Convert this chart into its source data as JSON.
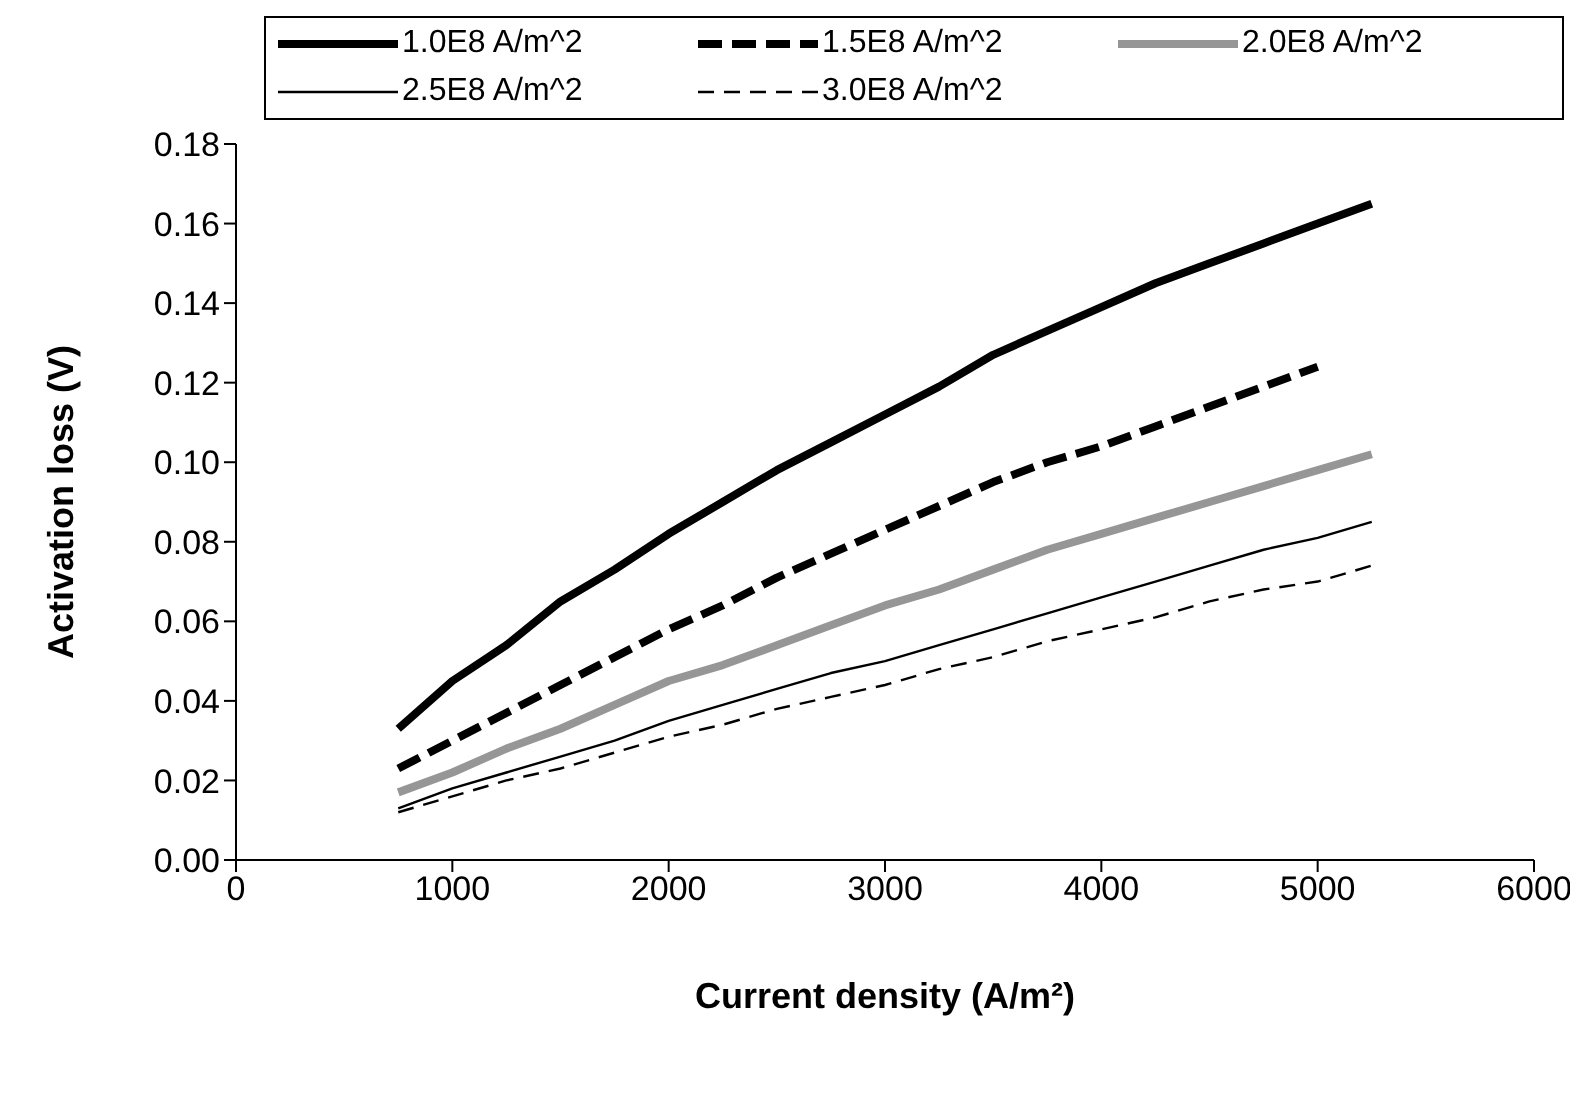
{
  "chart_data": {
    "type": "line",
    "xlabel": "Current density (A/m²)",
    "ylabel": "Activation loss (V)",
    "x": [
      750,
      1000,
      1250,
      1500,
      1750,
      2000,
      2250,
      2500,
      2750,
      3000,
      3250,
      3500,
      3750,
      4000,
      4250,
      4500,
      4750,
      5000,
      5250
    ],
    "series": [
      {
        "name": "1.0E8 A/m^2",
        "color": "#000000",
        "line_style": "solid",
        "values": [
          0.033,
          0.045,
          0.054,
          0.065,
          0.073,
          0.082,
          0.09,
          0.098,
          0.105,
          0.112,
          0.119,
          0.127,
          0.133,
          0.139,
          0.145,
          0.15,
          0.155,
          0.16,
          0.165
        ]
      },
      {
        "name": "1.5E8 A/m^2",
        "color": "#000000",
        "line_style": "dashed",
        "values": [
          0.023,
          0.03,
          0.037,
          0.044,
          0.051,
          0.058,
          0.064,
          0.071,
          0.077,
          0.083,
          0.089,
          0.095,
          0.1,
          0.104,
          0.109,
          0.114,
          0.119,
          0.124,
          null
        ]
      },
      {
        "name": "2.0E8 A/m^2",
        "color": "#969696",
        "line_style": "solid",
        "values": [
          0.017,
          0.022,
          0.028,
          0.033,
          0.039,
          0.045,
          0.049,
          0.054,
          0.059,
          0.064,
          0.068,
          0.073,
          0.078,
          0.082,
          0.086,
          0.09,
          0.094,
          0.098,
          0.102
        ]
      },
      {
        "name": "2.5E8 A/m^2",
        "color": "#000000",
        "line_style": "solid",
        "values": [
          0.013,
          0.018,
          0.022,
          0.026,
          0.03,
          0.035,
          0.039,
          0.043,
          0.047,
          0.05,
          0.054,
          0.058,
          0.062,
          0.066,
          0.07,
          0.074,
          0.078,
          0.081,
          0.085
        ]
      },
      {
        "name": "3.0E8 A/m^2",
        "color": "#000000",
        "line_style": "dashed",
        "values": [
          0.012,
          0.016,
          0.02,
          0.023,
          0.027,
          0.031,
          0.034,
          0.038,
          0.041,
          0.044,
          0.048,
          0.051,
          0.055,
          0.058,
          0.061,
          0.065,
          0.068,
          0.07,
          0.074
        ]
      }
    ],
    "xlim": [
      0,
      6000
    ],
    "xticks": [
      0,
      1000,
      2000,
      3000,
      4000,
      5000,
      6000
    ],
    "ylim": [
      0,
      0.18
    ],
    "yticks": [
      {
        "value": 0,
        "label": "0.00"
      },
      {
        "value": 0.02,
        "label": "0.02"
      },
      {
        "value": 0.04,
        "label": "0.04"
      },
      {
        "value": 0.06,
        "label": "0.06"
      },
      {
        "value": 0.08,
        "label": "0.08"
      },
      {
        "value": 0.1,
        "label": "0.10"
      },
      {
        "value": 0.12,
        "label": "0.12"
      },
      {
        "value": 0.14,
        "label": "0.14"
      },
      {
        "value": 0.16,
        "label": "0.16"
      },
      {
        "value": 0.18,
        "label": "0.18"
      }
    ],
    "grid": false,
    "legend": "top",
    "marker": "none"
  }
}
